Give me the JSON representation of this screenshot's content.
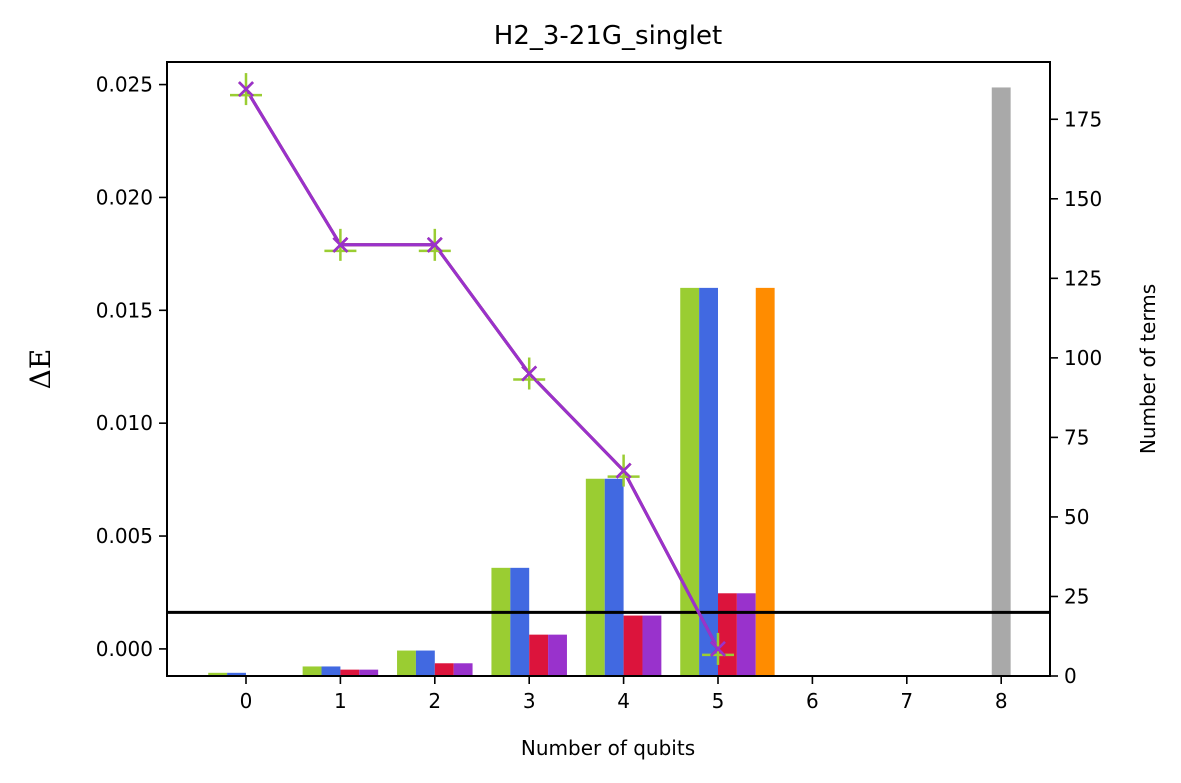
{
  "chart_data": {
    "type": "bar",
    "title": "H2_3-21G_singlet",
    "xlabel": "Number of qubits",
    "ylabel_left": "ΔE",
    "ylabel_right": "Number of terms",
    "x_ticks": [
      0,
      1,
      2,
      3,
      4,
      5,
      6,
      7,
      8
    ],
    "y_left_ticks": [
      "0.000",
      "0.005",
      "0.010",
      "0.015",
      "0.020",
      "0.025"
    ],
    "y_right_ticks": [
      "0",
      "25",
      "50",
      "75",
      "100",
      "125",
      "150",
      "175"
    ],
    "y_left_lim": [
      -0.0012,
      0.026
    ],
    "y_right_lim": [
      0,
      193
    ],
    "grid": false,
    "bar_series": [
      {
        "color": "#9acd32",
        "offset": -0.3,
        "points": [
          [
            0,
            1
          ],
          [
            1,
            3
          ],
          [
            2,
            8
          ],
          [
            3,
            34
          ],
          [
            4,
            62
          ],
          [
            5,
            122
          ]
        ]
      },
      {
        "color": "#4169e1",
        "offset": -0.1,
        "points": [
          [
            0,
            1
          ],
          [
            1,
            3
          ],
          [
            2,
            8
          ],
          [
            3,
            34
          ],
          [
            4,
            62
          ],
          [
            5,
            122
          ]
        ]
      },
      {
        "color": "#dc143c",
        "offset": 0.1,
        "points": [
          [
            0,
            0
          ],
          [
            1,
            2
          ],
          [
            2,
            4
          ],
          [
            3,
            13
          ],
          [
            4,
            19
          ],
          [
            5,
            26
          ]
        ]
      },
      {
        "color": "#9932cc",
        "offset": 0.3,
        "points": [
          [
            0,
            0
          ],
          [
            1,
            2
          ],
          [
            2,
            4
          ],
          [
            3,
            13
          ],
          [
            4,
            19
          ],
          [
            5,
            26
          ]
        ]
      },
      {
        "color": "#ff8c00",
        "offset": 0.5,
        "points": [
          [
            5,
            122
          ]
        ]
      },
      {
        "color": "#a9a9a9",
        "offset": 0.0,
        "points": [
          [
            8,
            185
          ]
        ]
      }
    ],
    "reference_line": {
      "value": 20,
      "axis": "right",
      "color": "#000000"
    },
    "line_series": [
      {
        "color": "#9acd32",
        "marker": "plus",
        "points": [
          [
            0,
            0.0248
          ],
          [
            1,
            0.0179
          ],
          [
            2,
            0.0179
          ],
          [
            3,
            0.0122
          ],
          [
            4,
            0.0079
          ],
          [
            5,
            0.0
          ]
        ]
      },
      {
        "color": "#4169e1",
        "marker": "x",
        "points": [
          [
            0,
            0.0248
          ],
          [
            1,
            0.0179
          ],
          [
            2,
            0.0179
          ],
          [
            3,
            0.0122
          ],
          [
            4,
            0.0079
          ],
          [
            5,
            0.0
          ]
        ]
      },
      {
        "color": "#dc143c",
        "marker": "x",
        "points": [
          [
            0,
            0.0248
          ],
          [
            1,
            0.0179
          ],
          [
            2,
            0.0179
          ],
          [
            3,
            0.0122
          ],
          [
            4,
            0.0079
          ],
          [
            5,
            0.0
          ]
        ]
      },
      {
        "color": "#9932cc",
        "marker": "x",
        "points": [
          [
            0,
            0.0248
          ],
          [
            1,
            0.0179
          ],
          [
            2,
            0.0179
          ],
          [
            3,
            0.0122
          ],
          [
            4,
            0.0079
          ],
          [
            5,
            0.0
          ]
        ]
      }
    ]
  }
}
